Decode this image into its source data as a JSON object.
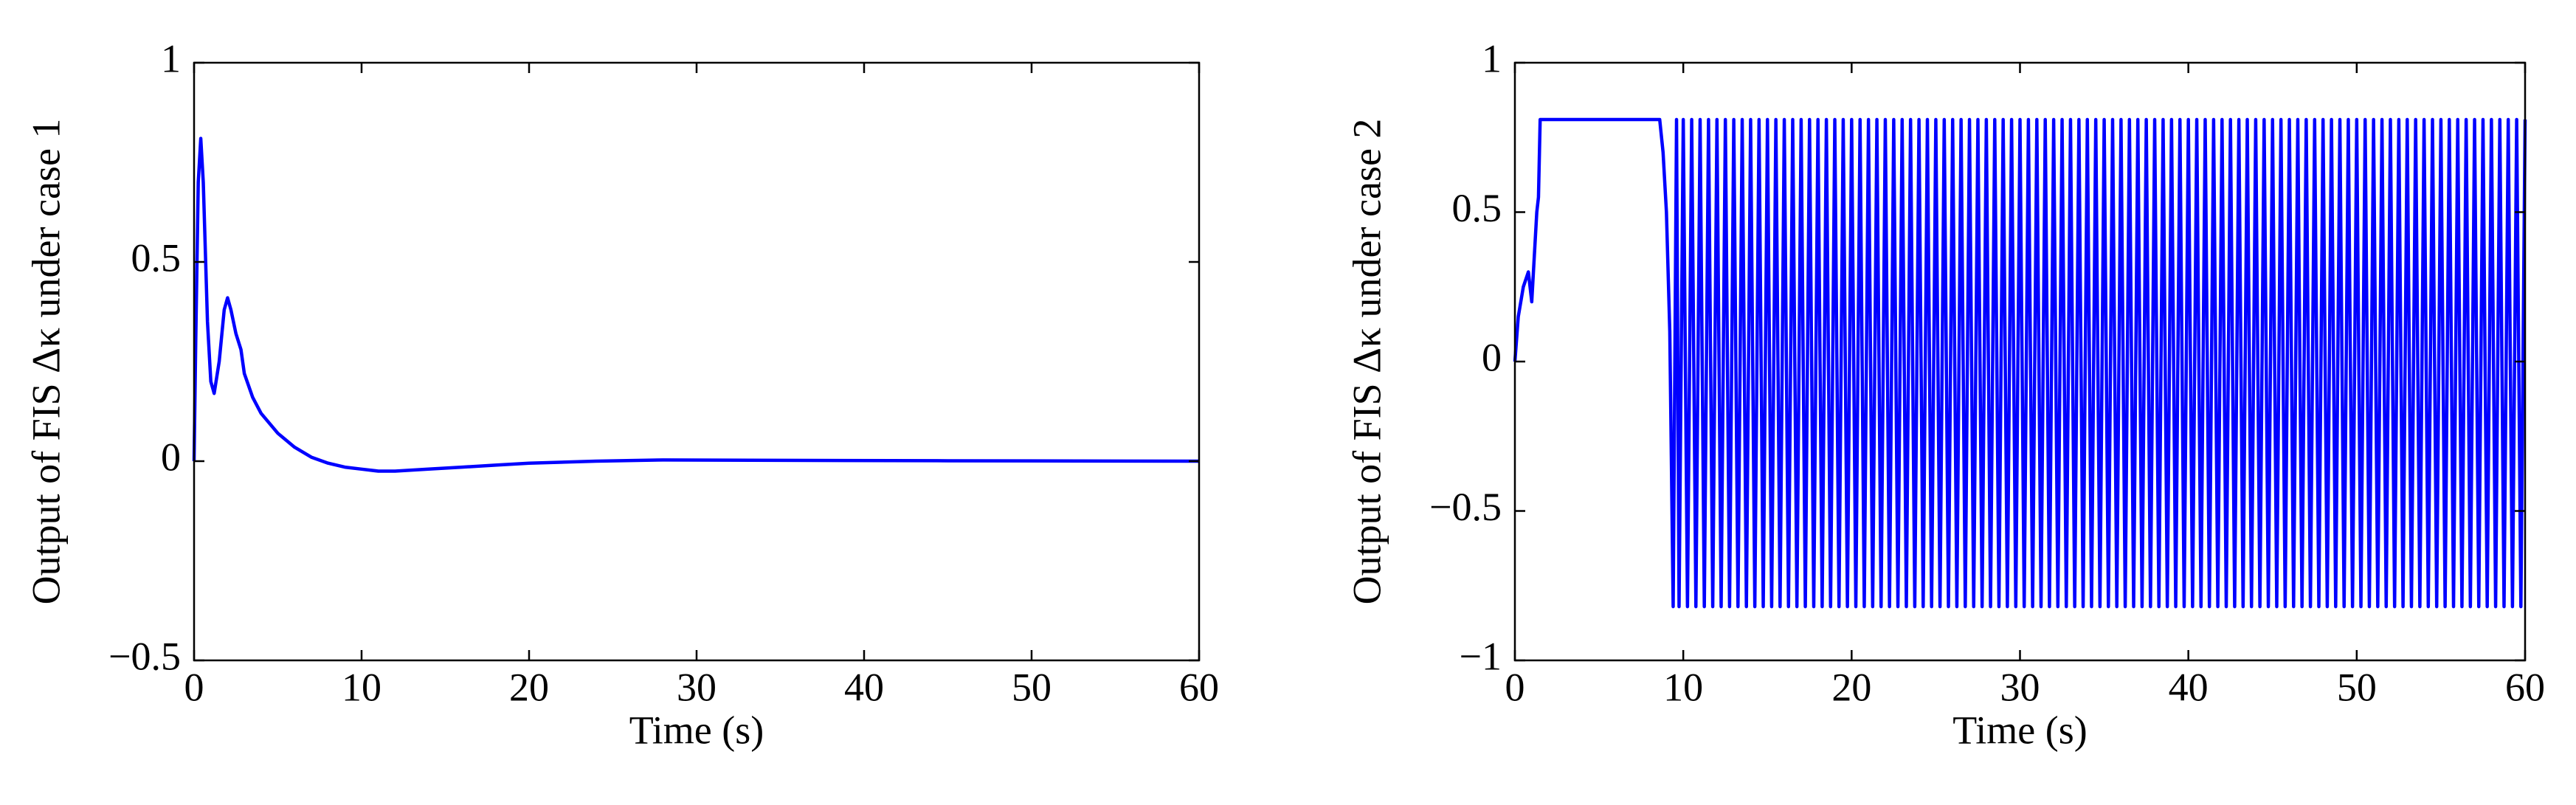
{
  "chart_data": [
    {
      "type": "line",
      "ylabel": "Output of FIS Δκ under case 1",
      "xlabel": "Time (s)",
      "xlim": [
        0,
        60
      ],
      "xticks": [
        0,
        10,
        20,
        30,
        40,
        50,
        60
      ],
      "ylim": [
        -0.5,
        1
      ],
      "yticks": [
        {
          "value": -0.5,
          "label": "−0.5"
        },
        0,
        0.5,
        1
      ],
      "series": [
        {
          "color": "#0000ff",
          "x": [
            0,
            0.1,
            0.25,
            0.4,
            0.55,
            0.8,
            1,
            1.2,
            1.5,
            1.8,
            2,
            2.2,
            2.5,
            2.8,
            3,
            3.5,
            4,
            5,
            6,
            7,
            8,
            9,
            10,
            11,
            12,
            14,
            16,
            18,
            20,
            24,
            28,
            35,
            45,
            60
          ],
          "values": [
            0,
            0.3,
            0.7,
            0.81,
            0.7,
            0.35,
            0.2,
            0.17,
            0.25,
            0.38,
            0.41,
            0.38,
            0.32,
            0.28,
            0.22,
            0.16,
            0.12,
            0.07,
            0.035,
            0.01,
            -0.005,
            -0.015,
            -0.02,
            -0.025,
            -0.025,
            -0.02,
            -0.015,
            -0.01,
            -0.005,
            0,
            0.003,
            0.002,
            0.001,
            0
          ]
        }
      ]
    },
    {
      "type": "line",
      "ylabel": "Output of FIS Δκ under case 2",
      "xlabel": "Time (s)",
      "xlim": [
        0,
        60
      ],
      "xticks": [
        0,
        10,
        20,
        30,
        40,
        50,
        60
      ],
      "ylim": [
        -1,
        1
      ],
      "yticks": [
        {
          "value": -1,
          "label": "−1"
        },
        {
          "value": -0.5,
          "label": "−0.5"
        },
        0,
        0.5,
        1
      ],
      "series": [
        {
          "color": "#0000ff",
          "x": [
            0,
            0.2,
            0.5,
            0.8,
            1,
            1.1,
            1.3,
            1.4,
            1.5,
            8.6,
            8.8,
            9,
            9.2,
            9.4,
            9.6,
            9.75,
            10,
            10.25,
            10.5,
            10.75,
            11,
            11.25,
            11.5,
            11.75,
            12,
            12.25,
            12.5,
            12.75,
            13,
            13.25,
            13.5,
            13.75,
            14,
            14.25,
            14.5,
            14.75,
            15,
            15.25,
            15.5,
            15.75,
            16,
            16.25,
            16.5,
            16.75,
            17,
            17.25,
            17.5,
            17.75,
            18,
            18.25,
            18.5,
            18.75,
            19,
            19.25,
            19.5,
            19.75,
            20,
            20.25,
            20.5,
            20.75,
            21,
            21.25,
            21.5,
            21.75,
            22,
            22.25,
            22.5,
            22.75,
            23,
            23.25,
            23.5,
            23.75,
            24,
            24.25,
            24.5,
            24.75,
            25,
            25.25,
            25.5,
            25.75,
            26,
            26.25,
            26.5,
            26.75,
            27,
            27.25,
            27.5,
            27.75,
            28,
            28.25,
            28.5,
            28.75,
            29,
            29.25,
            29.5,
            29.75,
            30,
            30.25,
            30.5,
            30.75,
            31,
            31.25,
            31.5,
            31.75,
            32,
            32.25,
            32.5,
            32.75,
            33,
            33.25,
            33.5,
            33.75,
            34,
            34.25,
            34.5,
            34.75,
            35,
            35.25,
            35.5,
            35.75,
            36,
            36.25,
            36.5,
            36.75,
            37,
            37.25,
            37.5,
            37.75,
            38,
            38.25,
            38.5,
            38.75,
            39,
            39.25,
            39.5,
            39.75,
            40,
            40.25,
            40.5,
            40.75,
            41,
            41.25,
            41.5,
            41.75,
            42,
            42.25,
            42.5,
            42.75,
            43,
            43.25,
            43.5,
            43.75,
            44,
            44.25,
            44.5,
            44.75,
            45,
            45.25,
            45.5,
            45.75,
            46,
            46.25,
            46.5,
            46.75,
            47,
            47.25,
            47.5,
            47.75,
            48,
            48.25,
            48.5,
            48.75,
            49,
            49.25,
            49.5,
            49.75,
            50,
            50.25,
            50.5,
            50.75,
            51,
            51.25,
            51.5,
            51.75,
            52,
            52.25,
            52.5,
            52.75,
            53,
            53.25,
            53.5,
            53.75,
            54,
            54.25,
            54.5,
            54.75,
            55,
            55.25,
            55.5,
            55.75,
            56,
            56.25,
            56.5,
            56.75,
            57,
            57.25,
            57.5,
            57.75,
            58,
            58.25,
            58.5,
            58.75,
            59,
            59.25,
            59.5,
            59.75,
            60
          ],
          "values": [
            0,
            0.15,
            0.25,
            0.3,
            0.2,
            0.3,
            0.5,
            0.55,
            0.81,
            0.81,
            0.7,
            0.5,
            0.1,
            -0.82,
            0.81,
            -0.82,
            0.81,
            -0.82,
            0.81,
            -0.82,
            0.81,
            -0.82,
            0.81,
            -0.82,
            0.81,
            -0.82,
            0.81,
            -0.82,
            0.81,
            -0.82,
            0.81,
            -0.82,
            0.81,
            -0.82,
            0.81,
            -0.82,
            0.81,
            -0.82,
            0.81,
            -0.82,
            0.81,
            -0.82,
            0.81,
            -0.82,
            0.81,
            -0.82,
            0.81,
            -0.82,
            0.81,
            -0.82,
            0.81,
            -0.82,
            0.81,
            -0.82,
            0.81,
            -0.82,
            0.81,
            -0.82,
            0.81,
            -0.82,
            0.81,
            -0.82,
            0.81,
            -0.82,
            0.81,
            -0.82,
            0.81,
            -0.82,
            0.81,
            -0.82,
            0.81,
            -0.82,
            0.81,
            -0.82,
            0.81,
            -0.82,
            0.81,
            -0.82,
            0.81,
            -0.82,
            0.81,
            -0.82,
            0.81,
            -0.82,
            0.81,
            -0.82,
            0.81,
            -0.82,
            0.81,
            -0.82,
            0.81,
            -0.82,
            0.81,
            -0.82,
            0.81,
            -0.82,
            0.81,
            -0.82,
            0.81,
            -0.82,
            0.81,
            -0.82,
            0.81,
            -0.82,
            0.81,
            -0.82,
            0.81,
            -0.82,
            0.81,
            -0.82,
            0.81,
            -0.82,
            0.81,
            -0.82,
            0.81,
            -0.82,
            0.81,
            -0.82,
            0.81,
            -0.82,
            0.81,
            -0.82,
            0.81,
            -0.82,
            0.81,
            -0.82,
            0.81,
            -0.82,
            0.81,
            -0.82,
            0.81,
            -0.82,
            0.81,
            -0.82,
            0.81,
            -0.82,
            0.81,
            -0.82,
            0.81,
            -0.82,
            0.81,
            -0.82,
            0.81,
            -0.82,
            0.81,
            -0.82,
            0.81,
            -0.82,
            0.81,
            -0.82,
            0.81,
            -0.82,
            0.81,
            -0.82,
            0.81,
            -0.82,
            0.81,
            -0.82,
            0.81,
            -0.82,
            0.81,
            -0.82,
            0.81,
            -0.82,
            0.81,
            -0.82,
            0.81,
            -0.82,
            0.81,
            -0.82,
            0.81,
            -0.82,
            0.81,
            -0.82,
            0.81,
            -0.82,
            0.81,
            -0.82,
            0.81,
            -0.82,
            0.81,
            -0.82,
            0.81,
            -0.82,
            0.81,
            -0.82,
            0.81,
            -0.82,
            0.81,
            -0.82,
            0.81,
            -0.82,
            0.81,
            -0.82,
            0.81,
            -0.82,
            0.81,
            -0.82,
            0.81,
            -0.82,
            0.81,
            -0.82,
            0.81,
            -0.82,
            0.81,
            -0.82,
            0.81,
            -0.82,
            0.81,
            -0.82,
            0.81,
            -0.82,
            0.81,
            -0.82,
            0.81,
            -0.82,
            0.81
          ]
        }
      ]
    }
  ]
}
